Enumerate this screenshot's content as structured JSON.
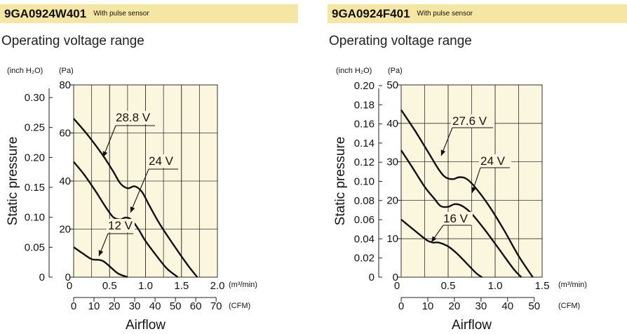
{
  "charts": [
    {
      "model": "9GA0924W401",
      "model_note": "With pulse sensor",
      "section_title": "Operating voltage range"
    },
    {
      "model": "9GA0924F401",
      "model_note": "With pulse sensor",
      "section_title": "Operating voltage range"
    }
  ],
  "chart_data": [
    {
      "type": "line",
      "title": "Operating voltage range",
      "ylabel": "Static pressure",
      "xlabel": "Airflow",
      "y_unit_primary": "(inch H₂O)",
      "y_unit_secondary": "(Pa)",
      "x_unit_primary": "(m³/min)",
      "x_unit_secondary": "(CFM)",
      "xlim": [
        0,
        2.0
      ],
      "ylim_pa": [
        0,
        80
      ],
      "x_ticks": [
        "0",
        "0.5",
        "1.0",
        "1.5",
        "2.0"
      ],
      "cfm_ticks": [
        "0",
        "10",
        "20",
        "30",
        "40",
        "50",
        "60",
        "70"
      ],
      "pa_ticks": [
        "0",
        "20",
        "40",
        "60",
        "80"
      ],
      "inch_ticks": [
        "0",
        "0.05",
        "0.10",
        "0.15",
        "0.20",
        "0.25",
        "0.30"
      ],
      "grid": true,
      "background": "#fbf7de",
      "series": [
        {
          "name": "28.8 V",
          "x": [
            0,
            0.2,
            0.4,
            0.55,
            0.65,
            0.75,
            0.85,
            0.95,
            1.05,
            1.2,
            1.4,
            1.6,
            1.72
          ],
          "y": [
            66,
            59,
            51,
            44,
            39,
            37,
            37.8,
            35.5,
            30,
            22,
            13,
            4.5,
            0
          ]
        },
        {
          "name": "24 V",
          "x": [
            0,
            0.15,
            0.3,
            0.45,
            0.55,
            0.65,
            0.72,
            0.8,
            0.9,
            1.0,
            1.15,
            1.3,
            1.45
          ],
          "y": [
            48,
            42.5,
            36,
            29,
            25,
            24,
            24.8,
            24,
            20,
            15,
            9,
            3.5,
            0
          ]
        },
        {
          "name": "12 V",
          "x": [
            0,
            0.12,
            0.25,
            0.35,
            0.42,
            0.52,
            0.62,
            0.75
          ],
          "y": [
            12.5,
            10,
            7.5,
            7.2,
            6.5,
            4,
            1.5,
            0
          ]
        }
      ]
    },
    {
      "type": "line",
      "title": "Operating voltage range",
      "ylabel": "Static pressure",
      "xlabel": "Airflow",
      "y_unit_primary": "(inch H₂O)",
      "y_unit_secondary": "(Pa)",
      "x_unit_primary": "(m³/min)",
      "x_unit_secondary": "(CFM)",
      "xlim": [
        0,
        1.5
      ],
      "ylim_pa": [
        0,
        50
      ],
      "x_ticks": [
        "0",
        "0.5",
        "1.0",
        "1.5"
      ],
      "cfm_ticks": [
        "0",
        "10",
        "20",
        "30",
        "40",
        "50"
      ],
      "pa_ticks": [
        "0",
        "10",
        "20",
        "30",
        "40",
        "50"
      ],
      "inch_ticks": [
        "0",
        "0.02",
        "0.04",
        "0.06",
        "0.08",
        "0.10",
        "0.12",
        "0.14",
        "0.16",
        "0.18",
        "0.20"
      ],
      "grid": true,
      "background": "#fbf7de",
      "series": [
        {
          "name": "27.6 V",
          "x": [
            0,
            0.15,
            0.3,
            0.4,
            0.47,
            0.55,
            0.62,
            0.7,
            0.8,
            0.95,
            1.1,
            1.25,
            1.4
          ],
          "y": [
            43.5,
            38,
            32,
            28,
            26,
            25.5,
            26,
            25.5,
            23,
            18,
            12,
            5.5,
            0
          ]
        },
        {
          "name": "24 V",
          "x": [
            0,
            0.12,
            0.25,
            0.35,
            0.42,
            0.5,
            0.57,
            0.65,
            0.75,
            0.9,
            1.05,
            1.2,
            1.28
          ],
          "y": [
            33,
            28.5,
            23.5,
            20.5,
            18.5,
            18.3,
            19,
            18.5,
            16.5,
            12,
            7,
            2,
            0
          ]
        },
        {
          "name": "16 V",
          "x": [
            0,
            0.1,
            0.2,
            0.28,
            0.34,
            0.4,
            0.5,
            0.6,
            0.7,
            0.8,
            0.86
          ],
          "y": [
            15,
            13,
            11,
            9.5,
            9,
            9,
            8,
            6,
            3.5,
            1,
            0
          ]
        }
      ]
    }
  ]
}
